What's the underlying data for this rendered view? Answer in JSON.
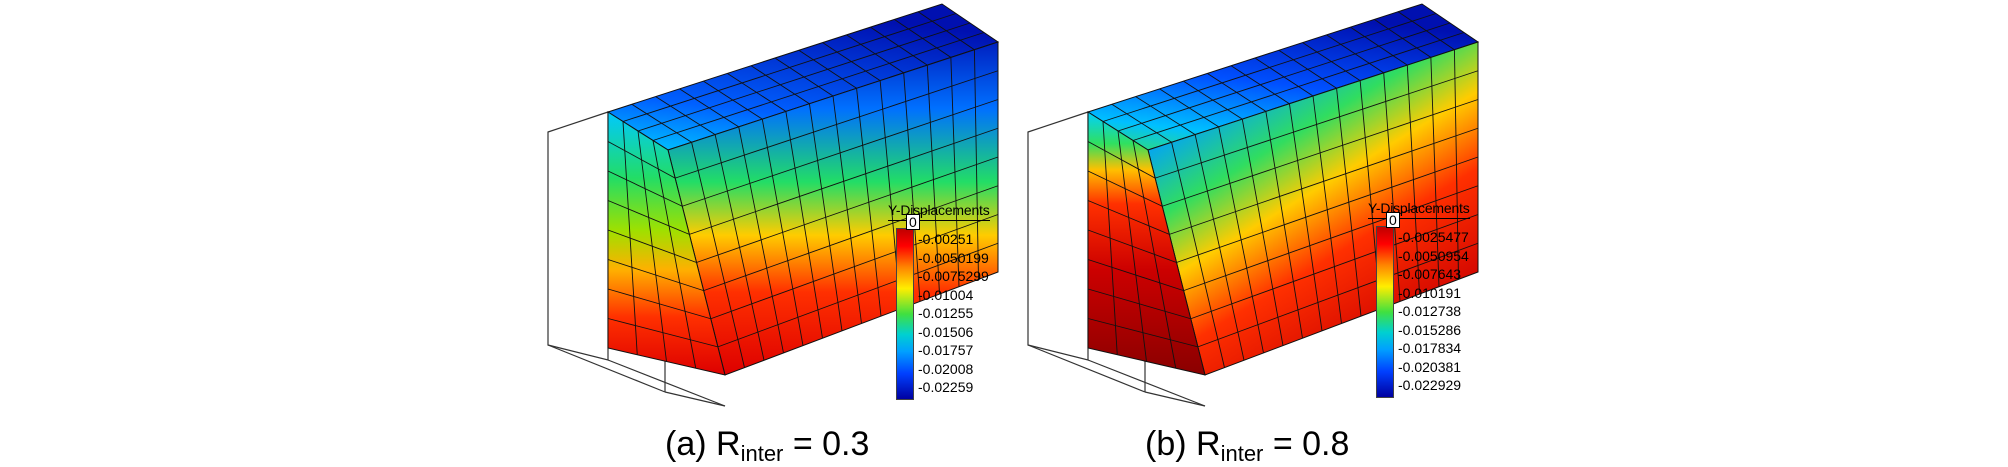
{
  "panels": [
    {
      "caption_prefix": "(a)",
      "caption_symbol": "R",
      "caption_subscript": "inter",
      "caption_suffix": "= 0.3",
      "legend_title": "Y-Displacements",
      "legend_zero": "0",
      "legend_ticks": [
        "-0.00251",
        "-0.0050199",
        "-0.0075299",
        "-0.01004",
        "-0.01255",
        "-0.01506",
        "-0.01757",
        "-0.02008",
        "-0.02259"
      ],
      "colormap": "jet-reversed"
    },
    {
      "caption_prefix": "(b)",
      "caption_symbol": "R",
      "caption_subscript": "inter",
      "caption_suffix": "= 0.8",
      "legend_title": "Y-Displacements",
      "legend_zero": "0",
      "legend_ticks": [
        "-0.0025477",
        "-0.0050954",
        "-0.007643",
        "-0.010191",
        "-0.012738",
        "-0.015286",
        "-0.017834",
        "-0.020381",
        "-0.022929"
      ],
      "colormap": "jet-reversed"
    }
  ]
}
